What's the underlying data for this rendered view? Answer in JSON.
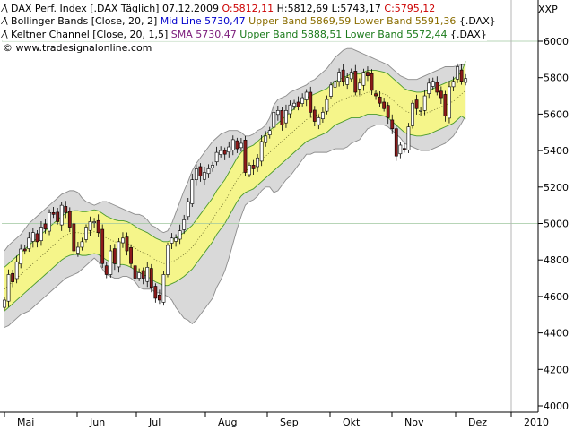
{
  "instrument": {
    "name": "DAX Perf. Index [.DAX Täglich] 07.12.2009",
    "open": "O:5812,11",
    "high": "H:5812,69",
    "low": "L:5743,17",
    "close": "C:5795,12"
  },
  "bollinger": {
    "name": "Bollinger Bands [Close, 20, 2]",
    "mid": "Mid Line 5730,47",
    "upper": "Upper Band 5869,59",
    "lower": "Lower Band 5591,36",
    "symbol": "{.DAX}"
  },
  "keltner": {
    "name": "Keltner Channel [Close, 20, 1,5]",
    "sma": "SMA 5730,47",
    "upper": "Upper Band 5888,51",
    "lower": "Lower Band 5572,44",
    "symbol": "{.DAX}"
  },
  "watermark": "www.tradesignalonline.com",
  "axis_corner_label": "XXP",
  "colors": {
    "background": "#ffffff",
    "bollinger_fill": "#d9d9d9",
    "bollinger_stroke": "#8c8c8c",
    "keltner_fill": "#f5f58a",
    "keltner_stroke": "#4a9a2a",
    "mid_line": "#6b6b2a",
    "candle_up": "#ffffff",
    "candle_down": "#8b1a1a",
    "open_color": "#cc0000",
    "close_color": "#cc0000",
    "bollinger_mid_color": "#0000cc",
    "bollinger_band_color": "#8a6d00",
    "keltner_sma_color": "#7a1a7a",
    "keltner_band_color": "#1a7a1a"
  },
  "chart_data": {
    "type": "candlestick",
    "ylim": [
      4000,
      6000
    ],
    "y_ticks": [
      "4000",
      "4200",
      "4400",
      "4600",
      "4800",
      "5000",
      "5200",
      "5400",
      "5600",
      "5800",
      "6000"
    ],
    "x_labels": [
      "Mai",
      "Jun",
      "Jul",
      "Aug",
      "Sep",
      "Okt",
      "Nov",
      "Dez",
      "2010"
    ],
    "horizontal_lines": [
      6000,
      5000
    ],
    "close": [
      4580,
      4720,
      4680,
      4790,
      4860,
      4850,
      4920,
      4950,
      4900,
      4980,
      4970,
      5060,
      5050,
      5010,
      5100,
      5060,
      4980,
      4850,
      4870,
      4900,
      4980,
      5010,
      5010,
      4950,
      4780,
      4720,
      4850,
      4780,
      4900,
      4920,
      4850,
      4780,
      4700,
      4730,
      4700,
      4760,
      4650,
      4590,
      4580,
      4720,
      4880,
      4920,
      4920,
      4960,
      5020,
      5120,
      5240,
      5300,
      5260,
      5280,
      5300,
      5320,
      5390,
      5400,
      5380,
      5420,
      5460,
      5410,
      5440,
      5280,
      5320,
      5300,
      5360,
      5450,
      5480,
      5510,
      5610,
      5620,
      5540,
      5620,
      5650,
      5660,
      5640,
      5690,
      5720,
      5610,
      5560,
      5580,
      5610,
      5680,
      5760,
      5780,
      5830,
      5780,
      5800,
      5830,
      5720,
      5770,
      5830,
      5810,
      5730,
      5700,
      5660,
      5630,
      5580,
      5520,
      5370,
      5430,
      5410,
      5530,
      5660,
      5630,
      5620,
      5700,
      5770,
      5780,
      5720,
      5690,
      5590,
      5750,
      5780,
      5860,
      5780,
      5795
    ],
    "bollinger": {
      "mid": [
        4640,
        4660,
        4680,
        4700,
        4720,
        4740,
        4760,
        4780,
        4800,
        4820,
        4840,
        4860,
        4880,
        4900,
        4920,
        4935,
        4945,
        4950,
        4950,
        4945,
        4945,
        4950,
        4955,
        4950,
        4935,
        4920,
        4910,
        4900,
        4895,
        4895,
        4890,
        4880,
        4865,
        4850,
        4840,
        4830,
        4815,
        4800,
        4790,
        4780,
        4780,
        4790,
        4800,
        4815,
        4830,
        4850,
        4870,
        4900,
        4930,
        4960,
        4990,
        5020,
        5060,
        5090,
        5120,
        5160,
        5200,
        5240,
        5270,
        5290,
        5300,
        5310,
        5330,
        5350,
        5370,
        5390,
        5410,
        5430,
        5450,
        5470,
        5490,
        5510,
        5530,
        5550,
        5570,
        5580,
        5590,
        5600,
        5610,
        5620,
        5640,
        5660,
        5670,
        5680,
        5690,
        5700,
        5700,
        5700,
        5710,
        5720,
        5720,
        5720,
        5715,
        5710,
        5700,
        5680,
        5660,
        5640,
        5620,
        5610,
        5605,
        5600,
        5600,
        5605,
        5610,
        5620,
        5630,
        5640,
        5650,
        5660,
        5670,
        5690,
        5710,
        5730
      ],
      "upper": [
        4850,
        4880,
        4900,
        4920,
        4940,
        4970,
        5000,
        5020,
        5040,
        5060,
        5080,
        5100,
        5120,
        5140,
        5160,
        5170,
        5180,
        5180,
        5170,
        5140,
        5120,
        5110,
        5100,
        5110,
        5120,
        5120,
        5110,
        5100,
        5090,
        5080,
        5070,
        5060,
        5050,
        5050,
        5040,
        5020,
        4990,
        4980,
        4960,
        4950,
        4960,
        5000,
        5060,
        5120,
        5180,
        5230,
        5290,
        5330,
        5360,
        5390,
        5420,
        5450,
        5470,
        5490,
        5500,
        5510,
        5510,
        5510,
        5500,
        5480,
        5480,
        5490,
        5510,
        5520,
        5540,
        5580,
        5650,
        5680,
        5690,
        5700,
        5720,
        5730,
        5740,
        5750,
        5760,
        5780,
        5790,
        5810,
        5830,
        5850,
        5880,
        5910,
        5930,
        5950,
        5960,
        5960,
        5950,
        5940,
        5930,
        5920,
        5910,
        5900,
        5890,
        5880,
        5870,
        5850,
        5830,
        5810,
        5800,
        5790,
        5790,
        5790,
        5800,
        5810,
        5820,
        5830,
        5840,
        5850,
        5860,
        5860,
        5860,
        5865,
        5870,
        5870
      ],
      "lower": [
        4430,
        4440,
        4460,
        4480,
        4500,
        4510,
        4520,
        4540,
        4560,
        4580,
        4600,
        4620,
        4640,
        4660,
        4680,
        4700,
        4710,
        4720,
        4730,
        4750,
        4770,
        4790,
        4810,
        4790,
        4750,
        4720,
        4710,
        4700,
        4700,
        4710,
        4710,
        4700,
        4680,
        4650,
        4640,
        4640,
        4640,
        4620,
        4620,
        4610,
        4600,
        4580,
        4540,
        4510,
        4480,
        4470,
        4450,
        4470,
        4500,
        4530,
        4560,
        4590,
        4650,
        4690,
        4740,
        4810,
        4890,
        4970,
        5040,
        5100,
        5120,
        5130,
        5150,
        5180,
        5200,
        5200,
        5170,
        5180,
        5210,
        5240,
        5260,
        5290,
        5320,
        5350,
        5380,
        5380,
        5390,
        5390,
        5390,
        5390,
        5400,
        5410,
        5410,
        5410,
        5420,
        5440,
        5450,
        5460,
        5490,
        5520,
        5530,
        5540,
        5540,
        5540,
        5530,
        5510,
        5490,
        5470,
        5440,
        5430,
        5420,
        5410,
        5400,
        5400,
        5400,
        5410,
        5420,
        5430,
        5440,
        5460,
        5480,
        5515,
        5550,
        5591
      ]
    },
    "keltner": {
      "upper": [
        4760,
        4780,
        4800,
        4820,
        4840,
        4860,
        4880,
        4900,
        4920,
        4940,
        4960,
        4980,
        5000,
        5020,
        5040,
        5055,
        5065,
        5070,
        5070,
        5065,
        5065,
        5070,
        5075,
        5070,
        5055,
        5040,
        5030,
        5020,
        5015,
        5015,
        5010,
        5000,
        4985,
        4970,
        4960,
        4950,
        4935,
        4920,
        4910,
        4900,
        4900,
        4910,
        4920,
        4935,
        4950,
        4970,
        4990,
        5020,
        5050,
        5080,
        5110,
        5140,
        5180,
        5210,
        5240,
        5280,
        5320,
        5360,
        5390,
        5410,
        5420,
        5430,
        5450,
        5470,
        5490,
        5510,
        5530,
        5550,
        5570,
        5590,
        5610,
        5630,
        5650,
        5670,
        5690,
        5700,
        5710,
        5720,
        5730,
        5740,
        5760,
        5780,
        5790,
        5800,
        5810,
        5820,
        5820,
        5820,
        5830,
        5840,
        5840,
        5840,
        5835,
        5830,
        5820,
        5800,
        5780,
        5760,
        5740,
        5730,
        5725,
        5720,
        5720,
        5725,
        5730,
        5740,
        5750,
        5760,
        5770,
        5780,
        5790,
        5810,
        5830,
        5890
      ],
      "lower": [
        4520,
        4540,
        4560,
        4580,
        4600,
        4620,
        4640,
        4660,
        4680,
        4700,
        4720,
        4740,
        4760,
        4780,
        4800,
        4815,
        4825,
        4830,
        4830,
        4825,
        4825,
        4830,
        4835,
        4830,
        4815,
        4800,
        4790,
        4780,
        4775,
        4775,
        4770,
        4760,
        4745,
        4730,
        4720,
        4710,
        4695,
        4680,
        4670,
        4660,
        4660,
        4670,
        4680,
        4695,
        4710,
        4730,
        4750,
        4780,
        4810,
        4840,
        4870,
        4900,
        4940,
        4970,
        5000,
        5040,
        5080,
        5120,
        5150,
        5170,
        5180,
        5190,
        5210,
        5230,
        5250,
        5270,
        5290,
        5310,
        5330,
        5350,
        5370,
        5390,
        5410,
        5430,
        5450,
        5460,
        5470,
        5480,
        5490,
        5500,
        5520,
        5540,
        5550,
        5560,
        5570,
        5580,
        5580,
        5580,
        5590,
        5600,
        5600,
        5600,
        5595,
        5590,
        5580,
        5560,
        5540,
        5520,
        5500,
        5490,
        5485,
        5480,
        5480,
        5485,
        5490,
        5500,
        5510,
        5520,
        5530,
        5540,
        5550,
        5570,
        5590,
        5572
      ]
    }
  }
}
